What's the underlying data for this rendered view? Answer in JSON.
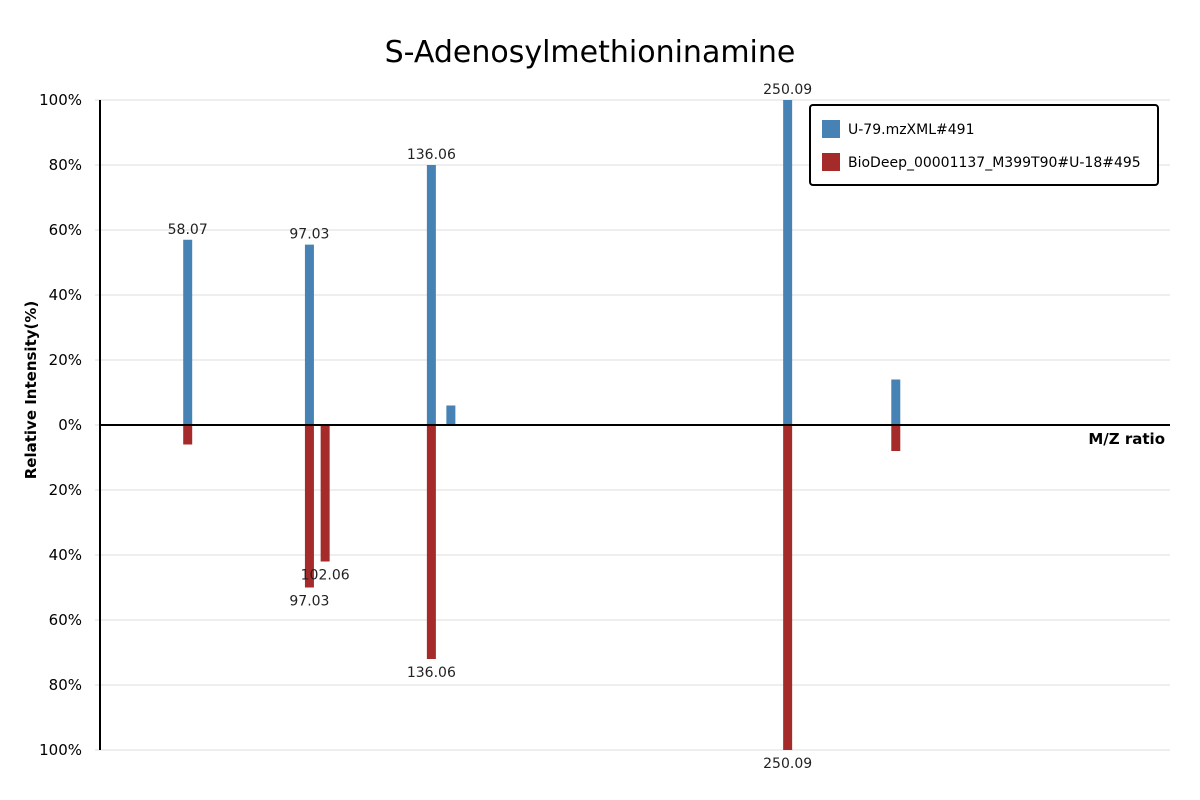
{
  "chart_data": {
    "type": "bar",
    "title": "S-Adenosylmethioninamine",
    "xlabel": "M/Z ratio",
    "ylabel": "Relative Intensity(%)",
    "ylim": [
      -100,
      100
    ],
    "xlim": [
      30,
      280
    ],
    "y_ticks": [
      "100%",
      "80%",
      "60%",
      "40%",
      "20%",
      "0%",
      "20%",
      "40%",
      "60%",
      "80%",
      "100%"
    ],
    "grid": true,
    "legend_position": "top-right",
    "colors": {
      "query": "#4682b4",
      "reference": "#a52a2a"
    },
    "series": [
      {
        "name": "U-79.mzXML#491",
        "direction": "up",
        "peaks": [
          {
            "mz": 58.07,
            "intensity": 57,
            "label": "58.07"
          },
          {
            "mz": 97.03,
            "intensity": 55.5,
            "label": "97.03"
          },
          {
            "mz": 136.06,
            "intensity": 80,
            "label": "136.06"
          },
          {
            "mz": 142.3,
            "intensity": 6,
            "label": ""
          },
          {
            "mz": 250.09,
            "intensity": 100,
            "label": "250.09"
          },
          {
            "mz": 284.7,
            "intensity": 14,
            "label": ""
          }
        ]
      },
      {
        "name": "BioDeep_00001137_M399T90#U-18#495",
        "direction": "down",
        "peaks": [
          {
            "mz": 58.07,
            "intensity": 6,
            "label": ""
          },
          {
            "mz": 97.03,
            "intensity": 50,
            "label": "97.03"
          },
          {
            "mz": 102.06,
            "intensity": 42,
            "label": "102.06"
          },
          {
            "mz": 136.06,
            "intensity": 72,
            "label": "136.06"
          },
          {
            "mz": 250.09,
            "intensity": 100,
            "label": "250.09"
          },
          {
            "mz": 284.7,
            "intensity": 8,
            "label": ""
          }
        ]
      }
    ]
  }
}
